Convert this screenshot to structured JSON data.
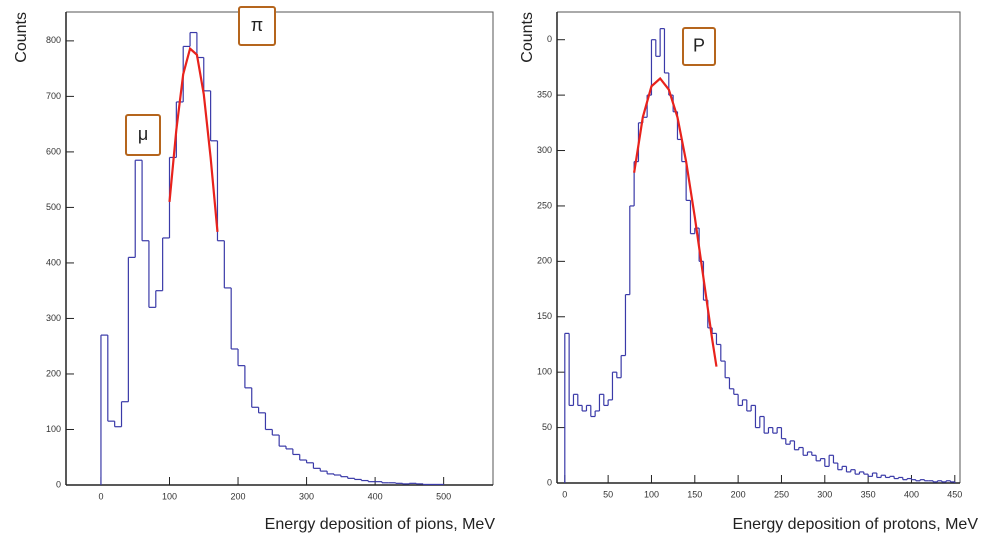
{
  "chart_data": [
    {
      "type": "histogram",
      "x_label": "Energy deposition of pions, MeV",
      "y_label": "Counts",
      "color": "#3a3aa8",
      "bins": [
        0,
        10,
        20,
        30,
        40,
        50,
        60,
        70,
        80,
        90,
        100,
        110,
        120,
        130,
        140,
        150,
        160,
        170,
        180,
        190,
        200,
        210,
        220,
        230,
        240,
        250,
        260,
        270,
        280,
        290,
        300,
        310,
        320,
        330,
        340,
        350,
        360,
        370,
        380,
        390,
        400,
        410,
        420,
        430,
        440,
        450,
        460,
        470,
        480,
        490,
        500
      ],
      "values": [
        270,
        115,
        105,
        150,
        410,
        585,
        440,
        320,
        350,
        445,
        590,
        690,
        790,
        815,
        770,
        710,
        620,
        440,
        355,
        245,
        215,
        175,
        140,
        130,
        100,
        90,
        70,
        65,
        55,
        45,
        40,
        30,
        25,
        20,
        18,
        15,
        12,
        10,
        8,
        6,
        6,
        4,
        4,
        3,
        2,
        3,
        2,
        1,
        1,
        1
      ],
      "fit": {
        "color": "#e8221c",
        "x": [
          100,
          110,
          120,
          130,
          140,
          150,
          160,
          170
        ],
        "values": [
          510,
          640,
          740,
          786,
          775,
          704,
          590,
          456
        ]
      },
      "annotations": [
        {
          "text": "μ"
        },
        {
          "text": "π"
        }
      ],
      "xlim": [
        -51,
        572
      ],
      "ylim": [
        0,
        852
      ],
      "xticks": [
        0,
        100,
        200,
        300,
        400,
        500
      ],
      "yticks": [
        0,
        100,
        200,
        300,
        400,
        500,
        600,
        700,
        800
      ]
    },
    {
      "type": "histogram",
      "x_label": "Energy deposition of protons, MeV",
      "y_label": "Counts",
      "color": "#3a3aa8",
      "bins": [
        0,
        5,
        10,
        15,
        20,
        25,
        30,
        35,
        40,
        45,
        50,
        55,
        60,
        65,
        70,
        75,
        80,
        85,
        90,
        95,
        100,
        105,
        110,
        115,
        120,
        125,
        130,
        135,
        140,
        145,
        150,
        155,
        160,
        165,
        170,
        175,
        180,
        185,
        190,
        195,
        200,
        205,
        210,
        215,
        220,
        225,
        230,
        235,
        240,
        245,
        250,
        255,
        260,
        265,
        270,
        275,
        280,
        285,
        290,
        295,
        300,
        305,
        310,
        315,
        320,
        325,
        330,
        335,
        340,
        345,
        350,
        355,
        360,
        365,
        370,
        375,
        380,
        385,
        390,
        395,
        400,
        405,
        410,
        415,
        420,
        425,
        430,
        435,
        440,
        445,
        450
      ],
      "values": [
        135,
        70,
        80,
        70,
        65,
        70,
        60,
        65,
        80,
        70,
        75,
        100,
        95,
        115,
        170,
        250,
        290,
        325,
        330,
        350,
        400,
        385,
        410,
        370,
        350,
        335,
        310,
        290,
        255,
        225,
        230,
        200,
        165,
        140,
        135,
        125,
        110,
        95,
        85,
        80,
        70,
        75,
        65,
        70,
        50,
        60,
        45,
        50,
        45,
        50,
        40,
        35,
        38,
        30,
        32,
        25,
        28,
        25,
        20,
        22,
        15,
        25,
        18,
        12,
        15,
        10,
        12,
        8,
        10,
        8,
        6,
        9,
        5,
        7,
        5,
        6,
        4,
        5,
        3,
        4,
        3,
        2,
        3,
        2,
        2,
        1,
        2,
        1,
        2,
        1
      ],
      "fit": {
        "color": "#e8221c",
        "x": [
          80,
          90,
          100,
          110,
          120,
          130,
          140,
          150,
          160,
          170,
          175
        ],
        "values": [
          280,
          330,
          358,
          365,
          355,
          330,
          290,
          240,
          185,
          130,
          105
        ]
      },
      "annotations": [
        {
          "text": "P"
        }
      ],
      "xlim": [
        -9,
        456
      ],
      "ylim": [
        0,
        425
      ],
      "xticks": [
        0,
        50,
        100,
        150,
        200,
        250,
        300,
        350,
        400,
        450
      ],
      "yticks": [
        0,
        50,
        100,
        150,
        200,
        250,
        300,
        350,
        {
          "value": 400,
          "label": "0"
        }
      ]
    }
  ]
}
